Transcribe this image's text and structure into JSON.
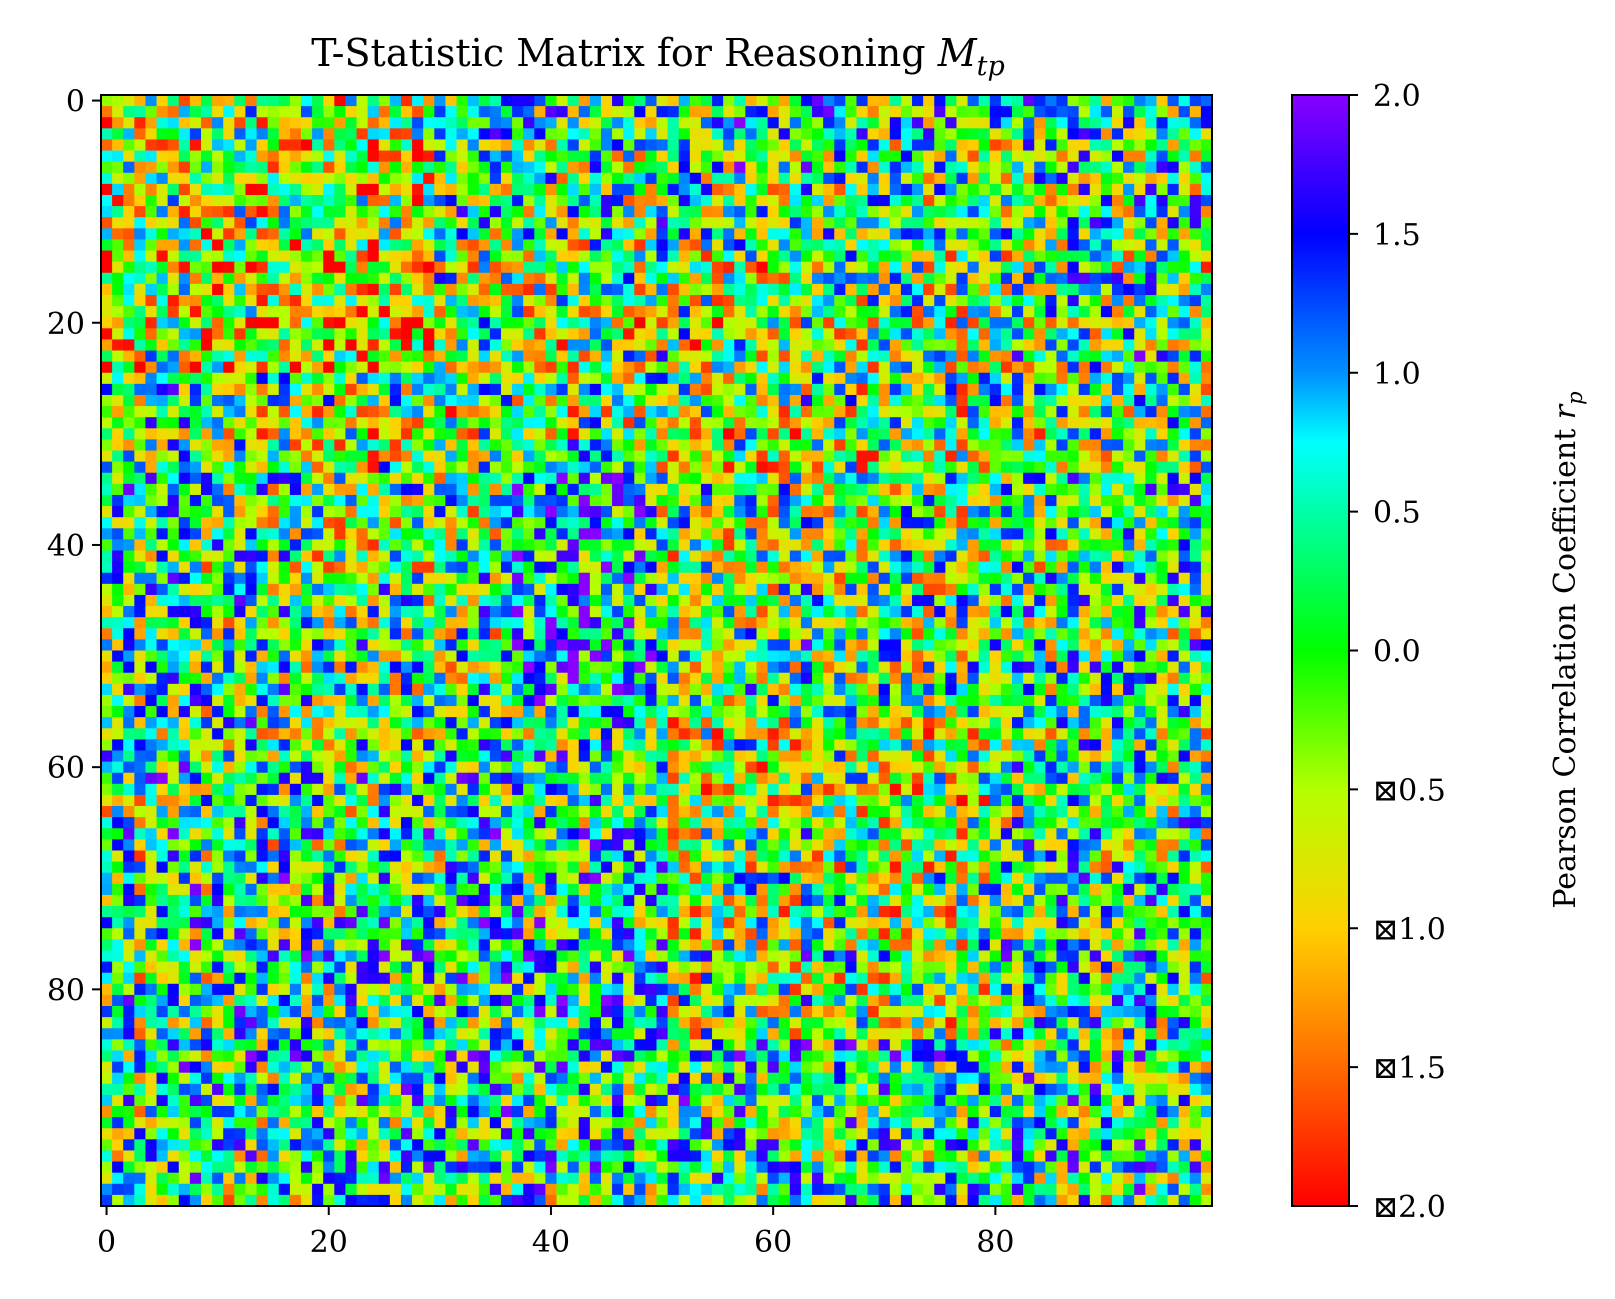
{
  "chart_data": {
    "type": "heatmap",
    "title_main": "T-Statistic Matrix for Reasoning ",
    "title_math_base": "M",
    "title_math_sub": "tp",
    "rows": 100,
    "cols": 100,
    "x_ticks": [
      0,
      20,
      40,
      60,
      80
    ],
    "x_tick_labels": [
      "0",
      "20",
      "40",
      "60",
      "80"
    ],
    "y_ticks": [
      0,
      20,
      40,
      60,
      80
    ],
    "y_tick_labels": [
      "0",
      "20",
      "40",
      "60",
      "80"
    ],
    "colorbar": {
      "label_main": "Pearson Correlation Coefficient ",
      "label_math_base": "r",
      "label_math_sub": "p",
      "vmin": -2.0,
      "vmax": 2.0,
      "ticks": [
        2.0,
        1.5,
        1.0,
        0.5,
        0.0,
        -0.5,
        -1.0,
        -1.5,
        -2.0
      ],
      "tick_labels": [
        "2.0",
        "1.5",
        "1.0",
        "0.5",
        "0.0",
        "⊠0.5",
        "⊠1.0",
        "⊠1.5",
        "⊠2.0"
      ]
    },
    "colormap_stops": [
      {
        "value": -2.0,
        "color": "#ff0000"
      },
      {
        "value": -1.5,
        "color": "#ff6a00"
      },
      {
        "value": -1.0,
        "color": "#ffd000"
      },
      {
        "value": -0.5,
        "color": "#b4ff00"
      },
      {
        "value": 0.0,
        "color": "#00ff00"
      },
      {
        "value": 0.5,
        "color": "#00ffa8"
      },
      {
        "value": 0.75,
        "color": "#00ffff"
      },
      {
        "value": 1.0,
        "color": "#0090ff"
      },
      {
        "value": 1.5,
        "color": "#0000ff"
      },
      {
        "value": 2.0,
        "color": "#8800ff"
      }
    ],
    "value_generation": "pseudo-random field (seed 20240517) — approximate, values not readable per cell",
    "grid": false
  }
}
